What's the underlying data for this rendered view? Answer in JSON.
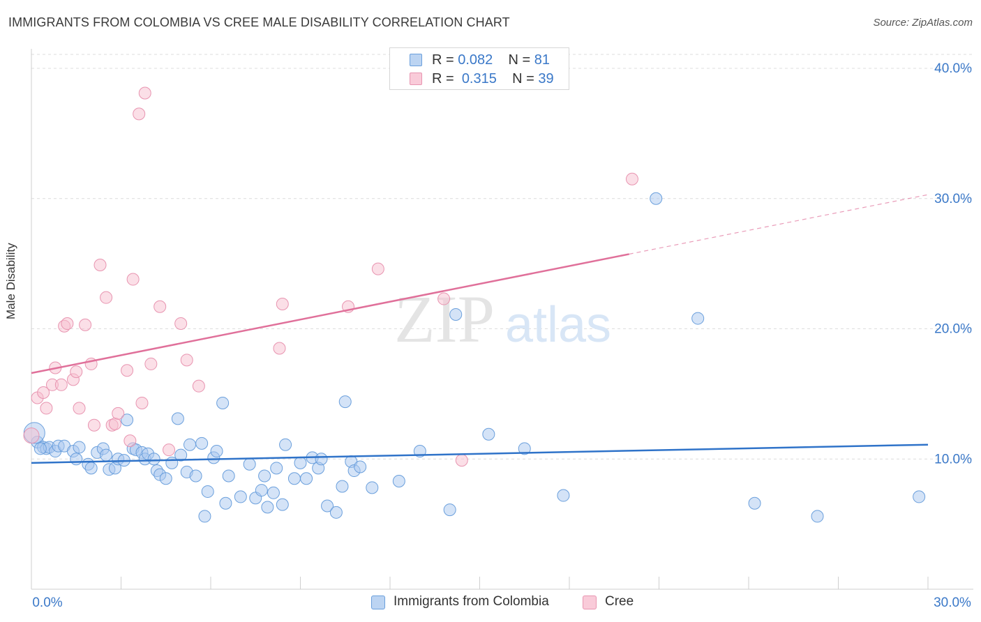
{
  "title": "IMMIGRANTS FROM COLOMBIA VS CREE MALE DISABILITY CORRELATION CHART",
  "source": "Source: ZipAtlas.com",
  "watermark": {
    "zip": "ZIP",
    "atlas": "atlas"
  },
  "legend_top": {
    "rows": [
      {
        "r_label": "R = ",
        "r_value": "0.082",
        "n_label": "N = ",
        "n_value": "81"
      },
      {
        "r_label": "R = ",
        "r_value": "0.315",
        "n_label": "N = ",
        "n_value": "39"
      }
    ]
  },
  "chart_data": {
    "type": "scatter",
    "xlabel": "",
    "ylabel": "Male Disability",
    "xlim": [
      0,
      30
    ],
    "ylim": [
      0,
      41.5
    ],
    "x_tick_labels": [
      "0.0%",
      "30.0%"
    ],
    "y_ticks": [
      10,
      20,
      30,
      40
    ],
    "y_tick_labels": [
      "10.0%",
      "20.0%",
      "30.0%",
      "40.0%"
    ],
    "grid": true,
    "legend_position": "bottom",
    "colors": {
      "blue_fill": "#a9c8ef",
      "blue_stroke": "#6a9fdc",
      "blue_line": "#2f73c9",
      "pink_fill": "#f7bfd0",
      "pink_stroke": "#e894b0",
      "pink_line": "#e0709a",
      "tick_label": "#3a78c8",
      "grid": "#dcdcdc"
    },
    "series": [
      {
        "name": "Immigrants from Colombia",
        "color": "#a9c8ef",
        "trend": {
          "x": [
            0,
            30
          ],
          "y": [
            9.7,
            11.1
          ],
          "dashed_from": null
        },
        "points": [
          [
            0.2,
            11.3
          ],
          [
            0.4,
            10.9
          ],
          [
            0.5,
            10.8
          ],
          [
            0.6,
            10.9
          ],
          [
            0.8,
            10.6
          ],
          [
            0.9,
            11.0
          ],
          [
            1.1,
            11.0
          ],
          [
            1.4,
            10.6
          ],
          [
            1.6,
            10.9
          ],
          [
            1.5,
            10.0
          ],
          [
            1.9,
            9.6
          ],
          [
            2.0,
            9.3
          ],
          [
            2.2,
            10.5
          ],
          [
            2.4,
            10.8
          ],
          [
            2.5,
            10.3
          ],
          [
            2.6,
            9.2
          ],
          [
            2.8,
            9.3
          ],
          [
            2.9,
            10.0
          ],
          [
            3.1,
            9.9
          ],
          [
            3.2,
            13.0
          ],
          [
            3.4,
            10.8
          ],
          [
            3.5,
            10.7
          ],
          [
            3.7,
            10.5
          ],
          [
            3.8,
            10.0
          ],
          [
            3.9,
            10.4
          ],
          [
            4.1,
            10.0
          ],
          [
            4.2,
            9.1
          ],
          [
            4.3,
            8.8
          ],
          [
            4.5,
            8.5
          ],
          [
            4.7,
            9.7
          ],
          [
            4.9,
            13.1
          ],
          [
            5.0,
            10.3
          ],
          [
            5.2,
            9.0
          ],
          [
            5.3,
            11.1
          ],
          [
            5.5,
            8.7
          ],
          [
            5.7,
            11.2
          ],
          [
            5.8,
            5.6
          ],
          [
            5.9,
            7.5
          ],
          [
            6.1,
            10.1
          ],
          [
            6.2,
            10.6
          ],
          [
            6.4,
            14.3
          ],
          [
            6.5,
            6.6
          ],
          [
            6.6,
            8.7
          ],
          [
            7.0,
            7.1
          ],
          [
            7.3,
            9.6
          ],
          [
            7.5,
            7.0
          ],
          [
            7.7,
            7.6
          ],
          [
            7.8,
            8.7
          ],
          [
            7.9,
            6.3
          ],
          [
            8.1,
            7.4
          ],
          [
            8.2,
            9.3
          ],
          [
            8.4,
            6.5
          ],
          [
            8.5,
            11.1
          ],
          [
            8.8,
            8.5
          ],
          [
            9.0,
            9.7
          ],
          [
            9.2,
            8.5
          ],
          [
            9.4,
            10.1
          ],
          [
            9.6,
            9.3
          ],
          [
            9.7,
            10.0
          ],
          [
            9.9,
            6.4
          ],
          [
            10.2,
            5.9
          ],
          [
            10.4,
            7.9
          ],
          [
            10.5,
            14.4
          ],
          [
            10.7,
            9.8
          ],
          [
            10.8,
            9.1
          ],
          [
            11.0,
            9.4
          ],
          [
            11.4,
            7.8
          ],
          [
            12.3,
            8.3
          ],
          [
            13.0,
            10.6
          ],
          [
            14.0,
            6.1
          ],
          [
            14.2,
            21.1
          ],
          [
            15.3,
            11.9
          ],
          [
            16.5,
            10.8
          ],
          [
            17.8,
            7.2
          ],
          [
            20.9,
            30.0
          ],
          [
            22.3,
            20.8
          ],
          [
            24.2,
            6.6
          ],
          [
            26.3,
            5.6
          ],
          [
            29.7,
            7.1
          ],
          [
            0.1,
            12.0
          ],
          [
            0.3,
            10.8
          ]
        ]
      },
      {
        "name": "Cree",
        "color": "#f7bfd0",
        "trend": {
          "x": [
            0,
            30
          ],
          "y": [
            16.6,
            30.3
          ],
          "dashed_from": 20.0
        },
        "points": [
          [
            0.0,
            11.8
          ],
          [
            0.2,
            14.7
          ],
          [
            0.4,
            15.1
          ],
          [
            0.5,
            13.9
          ],
          [
            0.7,
            15.7
          ],
          [
            0.8,
            17.0
          ],
          [
            1.0,
            15.7
          ],
          [
            1.1,
            20.2
          ],
          [
            1.2,
            20.4
          ],
          [
            1.4,
            16.1
          ],
          [
            1.5,
            16.7
          ],
          [
            1.6,
            13.9
          ],
          [
            1.8,
            20.3
          ],
          [
            2.0,
            17.3
          ],
          [
            2.1,
            12.6
          ],
          [
            2.3,
            24.9
          ],
          [
            2.5,
            22.4
          ],
          [
            2.7,
            12.6
          ],
          [
            2.8,
            12.7
          ],
          [
            2.9,
            13.5
          ],
          [
            3.2,
            16.8
          ],
          [
            3.4,
            23.8
          ],
          [
            3.6,
            36.5
          ],
          [
            3.7,
            14.3
          ],
          [
            3.8,
            38.1
          ],
          [
            4.0,
            17.3
          ],
          [
            3.3,
            11.4
          ],
          [
            4.3,
            21.7
          ],
          [
            4.6,
            10.7
          ],
          [
            5.0,
            20.4
          ],
          [
            5.2,
            17.6
          ],
          [
            5.6,
            15.6
          ],
          [
            8.3,
            18.5
          ],
          [
            8.4,
            21.9
          ],
          [
            10.6,
            21.7
          ],
          [
            11.6,
            24.6
          ],
          [
            13.8,
            22.3
          ],
          [
            14.4,
            9.9
          ],
          [
            20.1,
            31.5
          ]
        ]
      }
    ]
  },
  "bottom_legend": [
    {
      "label": "Immigrants from Colombia"
    },
    {
      "label": "Cree"
    }
  ]
}
